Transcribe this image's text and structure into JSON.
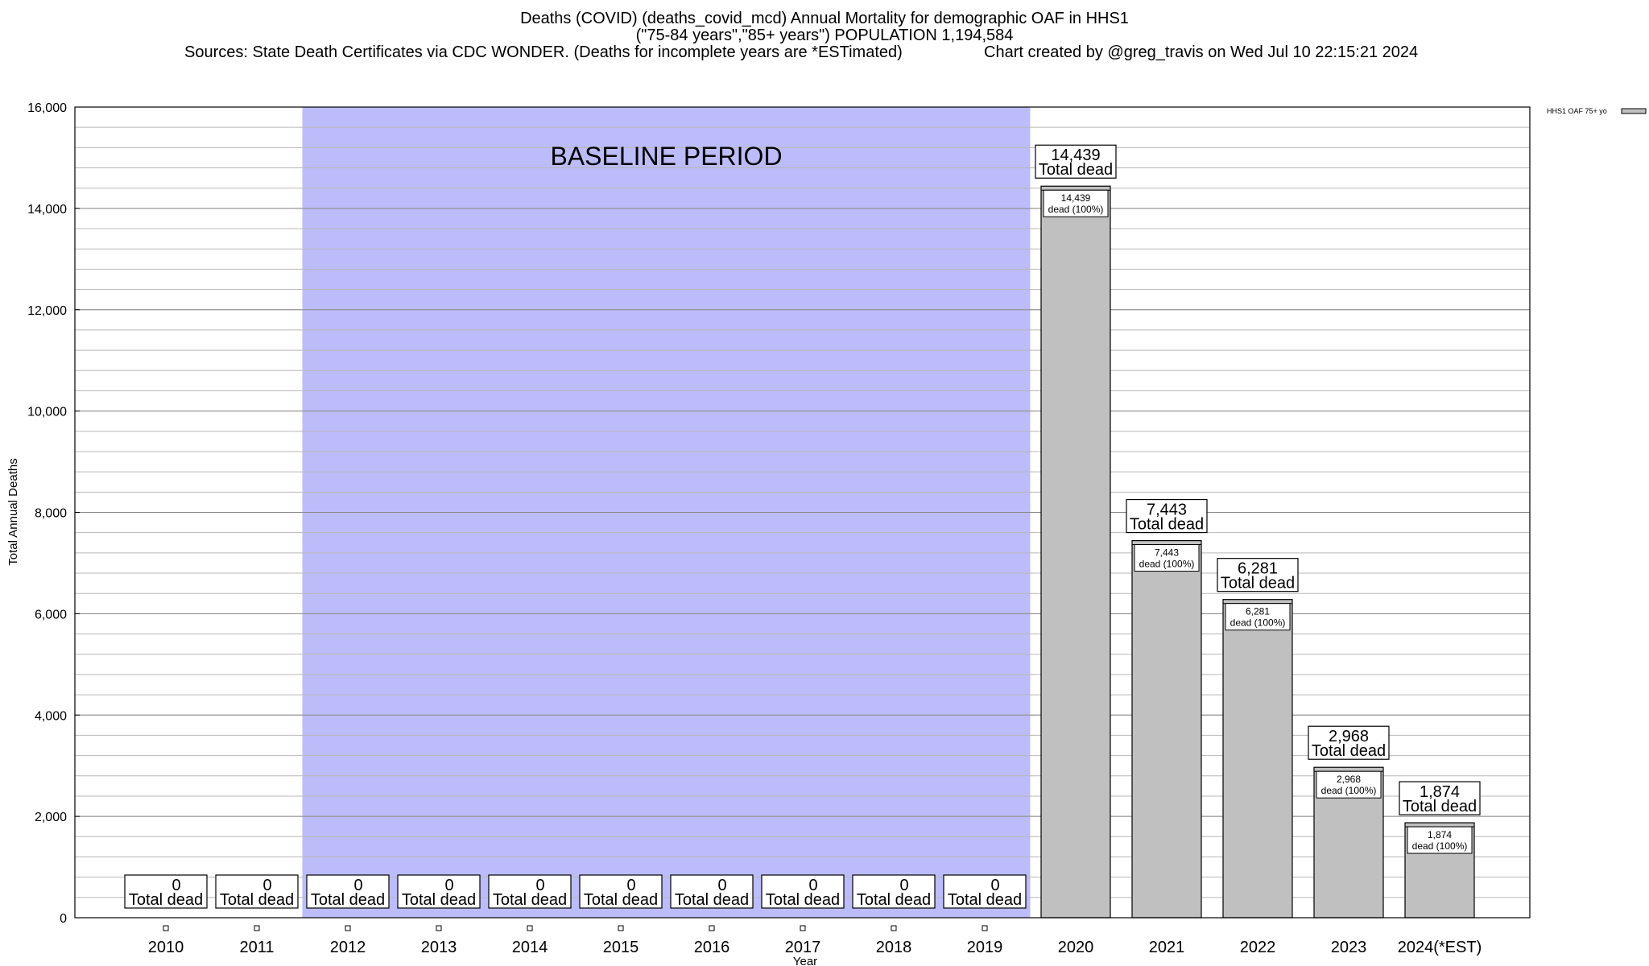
{
  "title_lines": [
    "Deaths (COVID) (deaths_covid_mcd) Annual Mortality for demographic OAF in HHS1",
    "(\"75-84 years\",\"85+ years\") POPULATION 1,194,584"
  ],
  "sources": "Sources: State Death Certificates via CDC WONDER. (Deaths for incomplete years are *ESTimated)",
  "credit": "Chart created by @greg_travis on Wed Jul 10 22:15:21 2024",
  "chart_data": {
    "type": "bar",
    "xlabel": "Year",
    "ylabel": "Total Annual Deaths",
    "ylim": [
      0,
      16000
    ],
    "yticks": [
      0,
      2000,
      4000,
      6000,
      8000,
      10000,
      12000,
      14000,
      16000
    ],
    "ytick_labels": [
      "0",
      "2,000",
      "4,000",
      "6,000",
      "8,000",
      "10,000",
      "12,000",
      "14,000",
      "16,000"
    ],
    "minor_gridline_step": 400,
    "grid": true,
    "legend": {
      "position": "top-right",
      "label": "HHS1 OAF 75+ yo"
    },
    "baseline_label": "BASELINE PERIOD",
    "baseline_range": [
      "2012",
      "2019"
    ],
    "categories": [
      "2010",
      "2011",
      "2012",
      "2013",
      "2014",
      "2015",
      "2016",
      "2017",
      "2018",
      "2019",
      "2020",
      "2021",
      "2022",
      "2023",
      "2024(*EST)"
    ],
    "series": [
      {
        "name": "HHS1 OAF 75+ yo",
        "values": [
          0,
          0,
          0,
          0,
          0,
          0,
          0,
          0,
          0,
          0,
          14439,
          7443,
          6281,
          2968,
          1874
        ],
        "color": "#c0c0c0"
      }
    ],
    "total_labels": [
      "0",
      "0",
      "0",
      "0",
      "0",
      "0",
      "0",
      "0",
      "0",
      "0",
      "14,439",
      "7,443",
      "6,281",
      "2,968",
      "1,874"
    ],
    "total_suffix": "Total dead",
    "inner_labels": [
      "",
      "",
      "",
      "",
      "",
      "",
      "",
      "",
      "",
      "",
      "14,439",
      "7,443",
      "6,281",
      "2,968",
      "1,874"
    ],
    "inner_suffix": "dead (100%)",
    "baseline_color": "#bcbcfa",
    "bar_color": "#c0c0c0"
  }
}
